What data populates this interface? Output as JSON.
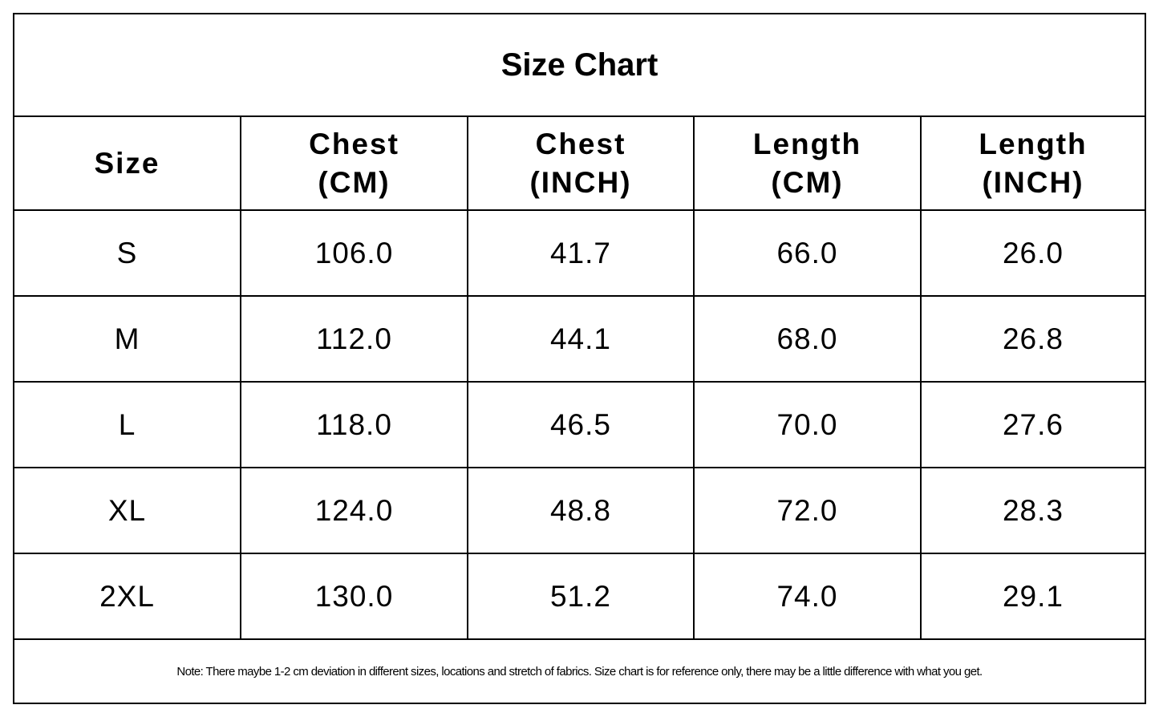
{
  "title": "Size Chart",
  "headers": [
    {
      "line1": "Size",
      "line2": ""
    },
    {
      "line1": "Chest",
      "line2": "(CM)"
    },
    {
      "line1": "Chest",
      "line2": "(INCH)"
    },
    {
      "line1": "Length",
      "line2": "(CM)"
    },
    {
      "line1": "Length",
      "line2": "(INCH)"
    }
  ],
  "rows": [
    [
      "S",
      "106.0",
      "41.7",
      "66.0",
      "26.0"
    ],
    [
      "M",
      "112.0",
      "44.1",
      "68.0",
      "26.8"
    ],
    [
      "L",
      "118.0",
      "46.5",
      "70.0",
      "27.6"
    ],
    [
      "XL",
      "124.0",
      "48.8",
      "72.0",
      "28.3"
    ],
    [
      "2XL",
      "130.0",
      "51.2",
      "74.0",
      "29.1"
    ]
  ],
  "note": "Note: There maybe 1-2 cm deviation in different sizes, locations and stretch of fabrics. Size chart is for reference only, there may be a little difference with what you get.",
  "colors": {
    "border": "#000000",
    "background": "#ffffff",
    "text": "#000000"
  }
}
